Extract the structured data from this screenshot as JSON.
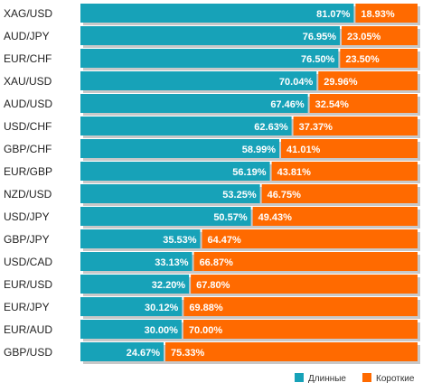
{
  "chart_data": {
    "type": "bar",
    "stacked": true,
    "orientation": "horizontal",
    "categories": [
      "XAG/USD",
      "AUD/JPY",
      "EUR/CHF",
      "XAU/USD",
      "AUD/USD",
      "USD/CHF",
      "GBP/CHF",
      "EUR/GBP",
      "NZD/USD",
      "USD/JPY",
      "GBP/JPY",
      "USD/CAD",
      "EUR/USD",
      "EUR/JPY",
      "EUR/AUD",
      "GBP/USD"
    ],
    "series": [
      {
        "name": "Длинные",
        "color": "#17a2b8",
        "values": [
          81.07,
          76.95,
          76.5,
          70.04,
          67.46,
          62.63,
          58.99,
          56.19,
          53.25,
          50.57,
          35.53,
          33.13,
          32.2,
          30.12,
          30.0,
          24.67
        ],
        "labels": [
          "81.07%",
          "76.95%",
          "76.50%",
          "70.04%",
          "67.46%",
          "62.63%",
          "58.99%",
          "56.19%",
          "53.25%",
          "50.57%",
          "35.53%",
          "33.13%",
          "32.20%",
          "30.12%",
          "30.00%",
          "24.67%"
        ]
      },
      {
        "name": "Короткие",
        "color": "#ff6a00",
        "values": [
          18.93,
          23.05,
          23.5,
          29.96,
          32.54,
          37.37,
          41.01,
          43.81,
          46.75,
          49.43,
          64.47,
          66.87,
          67.8,
          69.88,
          70.0,
          75.33
        ],
        "labels": [
          "18.93%",
          "23.05%",
          "23.50%",
          "29.96%",
          "32.54%",
          "37.37%",
          "41.01%",
          "43.81%",
          "46.75%",
          "49.43%",
          "64.47%",
          "66.87%",
          "67.80%",
          "69.88%",
          "70.00%",
          "75.33%"
        ]
      }
    ],
    "xlim": [
      0,
      100
    ],
    "legend_position": "bottom-right"
  }
}
